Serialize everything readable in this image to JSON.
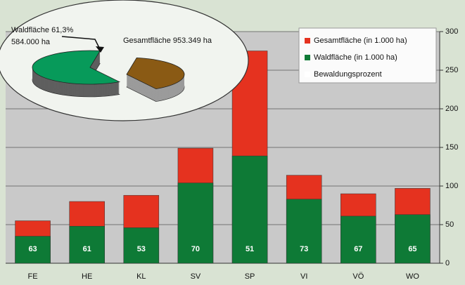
{
  "chart_data": [
    {
      "type": "bar",
      "categories": [
        "FE",
        "HE",
        "KL",
        "SV",
        "SP",
        "VI",
        "VÖ",
        "WO"
      ],
      "series": [
        {
          "name": "Gesamtfläche (in 1.000 ha)",
          "color": "#e5321f",
          "values": [
            55,
            80,
            88,
            149,
            275,
            114,
            90,
            97
          ]
        },
        {
          "name": "Waldfläche (in 1.000 ha)",
          "color": "#0e7a36",
          "values": [
            35,
            48,
            46,
            104,
            139,
            83,
            61,
            63
          ]
        },
        {
          "name": "Bewaldungsprozent",
          "color": "#ffffff",
          "values": [
            63,
            61,
            53,
            70,
            51,
            73,
            67,
            65
          ]
        }
      ],
      "ylim": [
        0,
        300
      ],
      "yticks": [
        0,
        50,
        100,
        150,
        200,
        250,
        300
      ],
      "grid": true
    },
    {
      "type": "pie",
      "annotations": [
        "Waldfläche 61,3%",
        "584.000 ha",
        "Gesamtfläche 953.349 ha"
      ],
      "values": [
        61.3,
        38.7
      ],
      "colors": [
        "#079a5a",
        "#8a5a14"
      ]
    }
  ]
}
